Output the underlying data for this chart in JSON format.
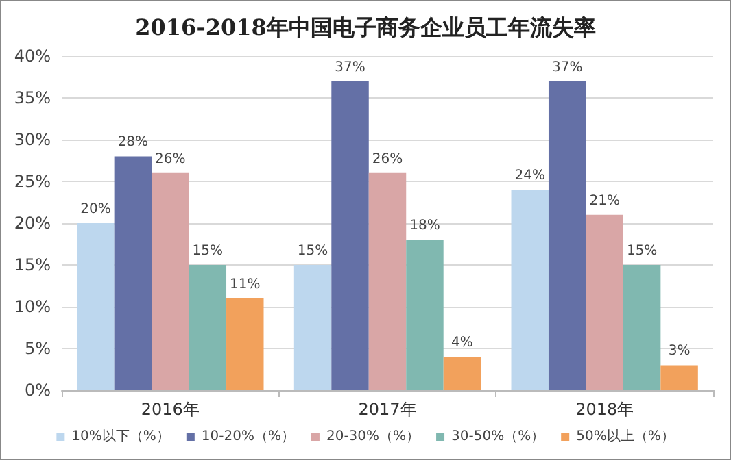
{
  "chart_data": {
    "type": "bar",
    "title": "2016-2018年中国电子商务企业员工年流失率",
    "categories": [
      "2016年",
      "2017年",
      "2018年"
    ],
    "series": [
      {
        "name": "10%以下（%）",
        "color": "#bdd7ee",
        "values": [
          20,
          15,
          24
        ],
        "value_labels": [
          "20%",
          "15%",
          "24%"
        ]
      },
      {
        "name": "10-20%（%）",
        "color": "#6470a6",
        "values": [
          28,
          37,
          37
        ],
        "value_labels": [
          "28%",
          "37%",
          "37%"
        ]
      },
      {
        "name": "20-30%（%）",
        "color": "#d9a6a6",
        "values": [
          26,
          26,
          21
        ],
        "value_labels": [
          "26%",
          "26%",
          "21%"
        ]
      },
      {
        "name": "30-50%（%）",
        "color": "#80b8b0",
        "values": [
          15,
          18,
          15
        ],
        "value_labels": [
          "15%",
          "18%",
          "15%"
        ]
      },
      {
        "name": "50%以上（%）",
        "color": "#f2a15c",
        "values": [
          11,
          4,
          3
        ],
        "value_labels": [
          "11%",
          "4%",
          "3%"
        ]
      }
    ],
    "ylim": [
      0,
      40
    ],
    "yticks": [
      {
        "value": 0,
        "label": "0%"
      },
      {
        "value": 5,
        "label": "5%"
      },
      {
        "value": 10,
        "label": "10%"
      },
      {
        "value": 15,
        "label": "15%"
      },
      {
        "value": 20,
        "label": "20%"
      },
      {
        "value": 25,
        "label": "25%"
      },
      {
        "value": 30,
        "label": "30%"
      },
      {
        "value": 35,
        "label": "35%"
      },
      {
        "value": 40,
        "label": "40%"
      }
    ],
    "grid": "y",
    "legend": "bottom"
  }
}
